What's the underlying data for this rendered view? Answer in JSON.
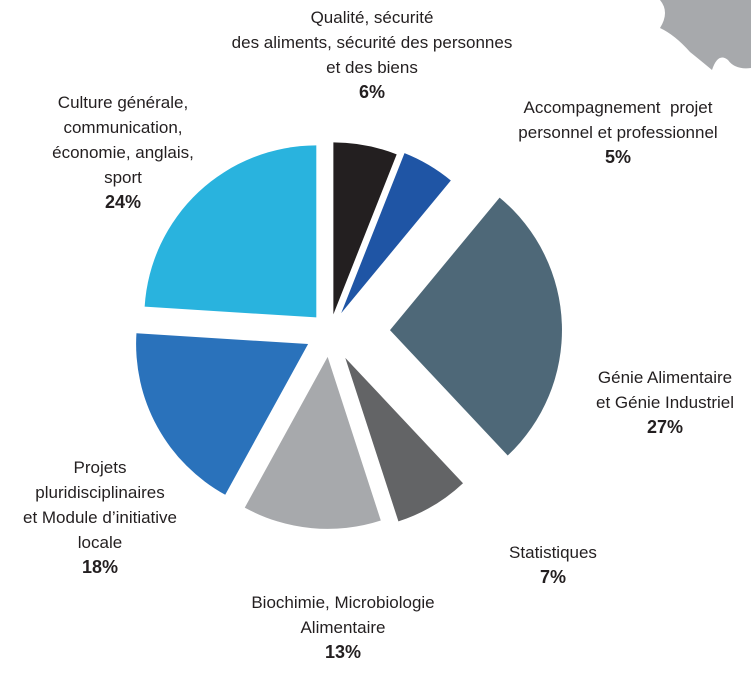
{
  "chart_data": {
    "type": "pie",
    "categories": [
      "Qualité, sécurité\ndes aliments, sécurité des personnes\net des biens",
      "Accompagnement  projet\npersonnel et professionnel",
      "Génie Alimentaire\net Génie Industriel",
      "Statistiques",
      "Biochimie, Microbiologie\nAlimentaire",
      "Projets\npluridisciplinaires\net Module d’initiative\nlocale",
      "Culture générale,\ncommunication,\néconomie, anglais,\nsport"
    ],
    "values": [
      6,
      5,
      27,
      7,
      13,
      18,
      24
    ],
    "value_labels": [
      "6%",
      "5%",
      "27%",
      "7%",
      "13%",
      "18%",
      "24%"
    ],
    "colors": [
      "#231f20",
      "#1f55a5",
      "#4e6878",
      "#636466",
      "#a7a9ac",
      "#2a72bb",
      "#29b3de"
    ]
  }
}
